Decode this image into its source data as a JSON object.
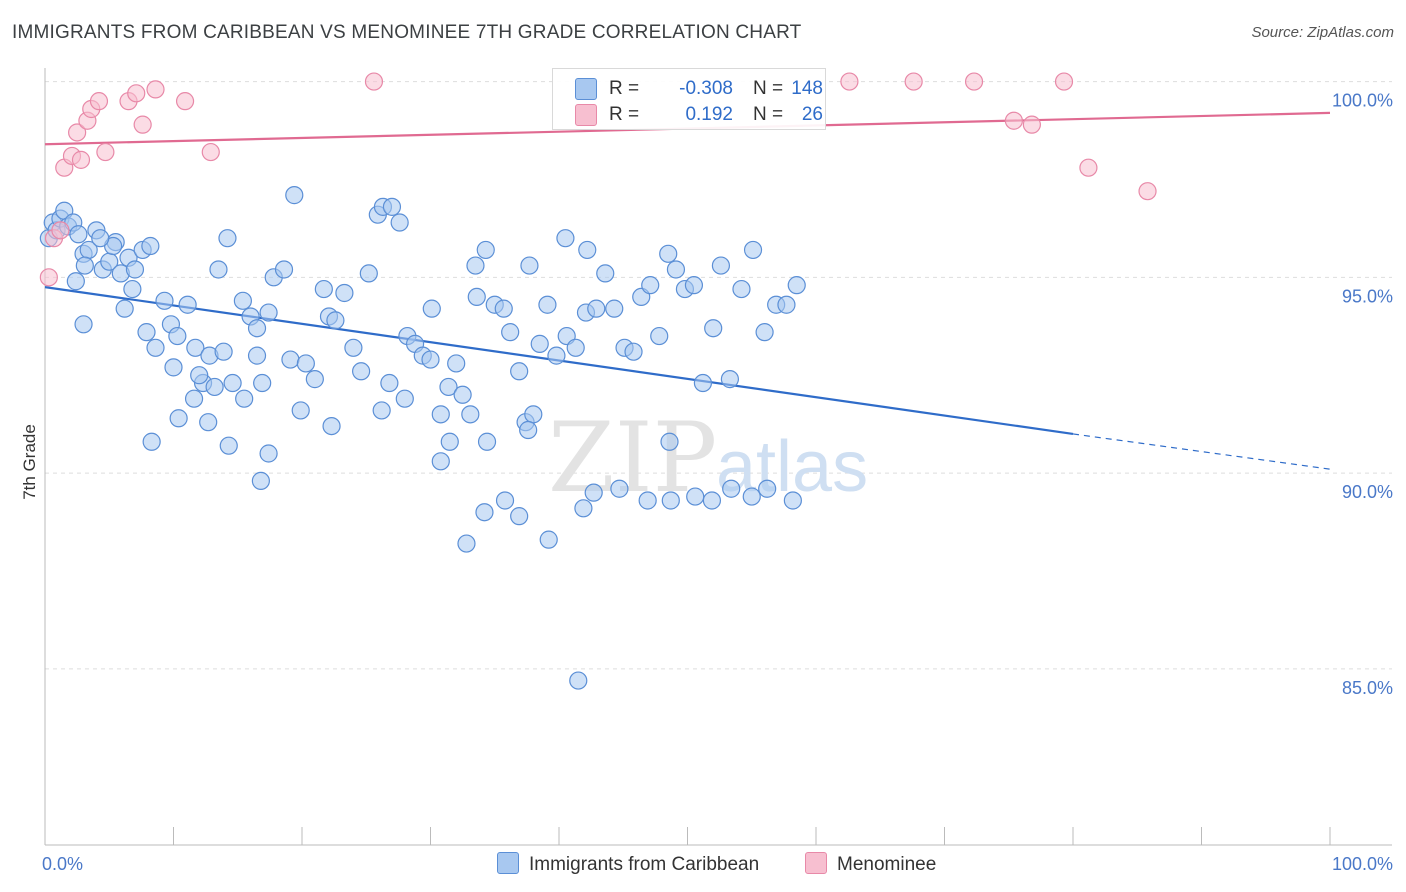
{
  "title": "IMMIGRANTS FROM CARIBBEAN VS MENOMINEE 7TH GRADE CORRELATION CHART",
  "source": "Source: ZipAtlas.com",
  "watermark": {
    "zip": "ZIP",
    "atlas": "atlas"
  },
  "colors": {
    "blue_fill": "#a8c8f0",
    "blue_stroke": "#5b8fd6",
    "blue_line": "#2f6cc9",
    "pink_fill": "#f7bfd0",
    "pink_stroke": "#e889a8",
    "pink_line": "#e06a91",
    "tick_text": "#4a78c8",
    "grid": "#dddddd"
  },
  "legend": {
    "rows": [
      {
        "r_label": "R =",
        "r_value": "-0.308",
        "n_label": "N =",
        "n_value": "148",
        "color": "#a8c8f0"
      },
      {
        "r_label": "R =",
        "r_value": "0.192",
        "n_label": "N =",
        "n_value": "26",
        "color": "#f7bfd0"
      }
    ]
  },
  "bottom_legend": [
    {
      "label": "Immigrants from Caribbean",
      "color": "#a8c8f0"
    },
    {
      "label": "Menominee",
      "color": "#f7bfd0"
    }
  ],
  "chart_data": {
    "type": "scatter",
    "title": "IMMIGRANTS FROM CARIBBEAN VS MENOMINEE 7TH GRADE CORRELATION CHART",
    "xlabel": "",
    "ylabel": "7th Grade",
    "xlim": [
      0,
      100
    ],
    "ylim": [
      80.5,
      100.5
    ],
    "x_ticks": [
      0,
      10,
      20,
      30,
      40,
      50,
      60,
      70,
      80,
      90,
      100
    ],
    "x_tick_labels": {
      "0": "0.0%",
      "100": "100.0%"
    },
    "y_ticks": [
      85,
      90,
      95,
      100
    ],
    "y_tick_labels": [
      "85.0%",
      "90.0%",
      "95.0%",
      "100.0%"
    ],
    "grid": true,
    "legend_position": "top-center",
    "series": [
      {
        "name": "Immigrants from Caribbean",
        "r": -0.308,
        "n": 148,
        "trend": {
          "x0": 0,
          "y0": 94.75,
          "x1": 80,
          "y1": 91.0,
          "dashed_to": 100,
          "y_end": 90.1
        },
        "points": [
          [
            0.3,
            96.0
          ],
          [
            0.6,
            96.4
          ],
          [
            0.9,
            96.2
          ],
          [
            1.2,
            96.5
          ],
          [
            1.5,
            96.7
          ],
          [
            1.8,
            96.3
          ],
          [
            2.2,
            96.4
          ],
          [
            2.6,
            96.1
          ],
          [
            3.0,
            95.6
          ],
          [
            3.4,
            95.7
          ],
          [
            4.0,
            96.2
          ],
          [
            4.5,
            95.2
          ],
          [
            5.0,
            95.4
          ],
          [
            5.5,
            95.9
          ],
          [
            5.9,
            95.1
          ],
          [
            6.5,
            95.5
          ],
          [
            7.0,
            95.2
          ],
          [
            7.6,
            95.7
          ],
          [
            8.2,
            95.8
          ],
          [
            3.1,
            95.3
          ],
          [
            5.3,
            95.8
          ],
          [
            4.3,
            96.0
          ],
          [
            2.4,
            94.9
          ],
          [
            6.2,
            94.2
          ],
          [
            7.9,
            93.6
          ],
          [
            8.6,
            93.2
          ],
          [
            9.3,
            94.4
          ],
          [
            9.8,
            93.8
          ],
          [
            10.3,
            93.5
          ],
          [
            11.1,
            94.3
          ],
          [
            11.7,
            93.2
          ],
          [
            12.3,
            92.3
          ],
          [
            12.8,
            93.0
          ],
          [
            13.2,
            92.2
          ],
          [
            13.9,
            93.1
          ],
          [
            14.6,
            92.3
          ],
          [
            3.0,
            93.8
          ],
          [
            6.8,
            94.7
          ],
          [
            10.0,
            92.7
          ],
          [
            12.0,
            92.5
          ],
          [
            13.5,
            95.2
          ],
          [
            14.2,
            96.0
          ],
          [
            15.4,
            94.4
          ],
          [
            16.0,
            94.0
          ],
          [
            16.5,
            93.7
          ],
          [
            17.4,
            94.1
          ],
          [
            17.8,
            95.0
          ],
          [
            18.6,
            95.2
          ],
          [
            19.4,
            97.1
          ],
          [
            16.9,
            92.3
          ],
          [
            8.3,
            90.8
          ],
          [
            10.4,
            91.4
          ],
          [
            11.6,
            91.9
          ],
          [
            12.7,
            91.3
          ],
          [
            14.3,
            90.7
          ],
          [
            15.5,
            91.9
          ],
          [
            16.8,
            89.8
          ],
          [
            17.4,
            90.5
          ],
          [
            19.1,
            92.9
          ],
          [
            19.9,
            91.6
          ],
          [
            20.3,
            92.8
          ],
          [
            21.0,
            92.4
          ],
          [
            21.7,
            94.7
          ],
          [
            22.1,
            94.0
          ],
          [
            22.6,
            93.9
          ],
          [
            23.3,
            94.6
          ],
          [
            24.0,
            93.2
          ],
          [
            24.6,
            92.6
          ],
          [
            25.2,
            95.1
          ],
          [
            25.9,
            96.6
          ],
          [
            26.3,
            96.8
          ],
          [
            27.0,
            96.8
          ],
          [
            27.6,
            96.4
          ],
          [
            28.2,
            93.5
          ],
          [
            28.8,
            93.3
          ],
          [
            29.4,
            93.0
          ],
          [
            30.1,
            94.2
          ],
          [
            30.8,
            91.5
          ],
          [
            31.4,
            92.2
          ],
          [
            32.0,
            92.8
          ],
          [
            32.5,
            92.0
          ],
          [
            33.1,
            91.5
          ],
          [
            33.6,
            94.5
          ],
          [
            34.3,
            95.7
          ],
          [
            35.0,
            94.3
          ],
          [
            35.7,
            94.2
          ],
          [
            36.2,
            93.6
          ],
          [
            36.9,
            92.6
          ],
          [
            37.4,
            91.3
          ],
          [
            38.0,
            91.5
          ],
          [
            16.5,
            93.0
          ],
          [
            22.3,
            91.2
          ],
          [
            26.2,
            91.6
          ],
          [
            28.0,
            91.9
          ],
          [
            26.8,
            92.3
          ],
          [
            30.8,
            90.3
          ],
          [
            31.5,
            90.8
          ],
          [
            30.0,
            92.9
          ],
          [
            34.4,
            90.8
          ],
          [
            37.6,
            91.1
          ],
          [
            38.5,
            93.3
          ],
          [
            39.1,
            94.3
          ],
          [
            39.8,
            93.0
          ],
          [
            40.6,
            93.5
          ],
          [
            41.3,
            93.2
          ],
          [
            42.1,
            94.1
          ],
          [
            42.9,
            94.2
          ],
          [
            43.6,
            95.1
          ],
          [
            44.3,
            94.2
          ],
          [
            45.1,
            93.2
          ],
          [
            45.8,
            93.1
          ],
          [
            46.4,
            94.5
          ],
          [
            47.1,
            94.8
          ],
          [
            47.8,
            93.5
          ],
          [
            48.5,
            95.6
          ],
          [
            49.1,
            95.2
          ],
          [
            49.8,
            94.7
          ],
          [
            50.5,
            94.8
          ],
          [
            51.2,
            92.3
          ],
          [
            52.0,
            93.7
          ],
          [
            52.6,
            95.3
          ],
          [
            53.3,
            92.4
          ],
          [
            54.2,
            94.7
          ],
          [
            55.1,
            95.7
          ],
          [
            56.0,
            93.6
          ],
          [
            56.9,
            94.3
          ],
          [
            57.7,
            94.3
          ],
          [
            58.5,
            94.8
          ],
          [
            33.5,
            95.3
          ],
          [
            40.5,
            96.0
          ],
          [
            42.2,
            95.7
          ],
          [
            37.7,
            95.3
          ],
          [
            48.6,
            90.8
          ],
          [
            41.9,
            89.1
          ],
          [
            32.8,
            88.2
          ],
          [
            35.8,
            89.3
          ],
          [
            34.2,
            89.0
          ],
          [
            36.9,
            88.9
          ],
          [
            39.2,
            88.3
          ],
          [
            42.7,
            89.5
          ],
          [
            44.7,
            89.6
          ],
          [
            46.9,
            89.3
          ],
          [
            48.7,
            89.3
          ],
          [
            50.6,
            89.4
          ],
          [
            51.9,
            89.3
          ],
          [
            53.4,
            89.6
          ],
          [
            55.0,
            89.4
          ],
          [
            56.2,
            89.6
          ],
          [
            58.2,
            89.3
          ],
          [
            41.5,
            84.7
          ]
        ]
      },
      {
        "name": "Menominee",
        "r": 0.192,
        "n": 26,
        "trend": {
          "x0": 0,
          "y0": 98.4,
          "x1": 100,
          "y1": 99.2
        },
        "points": [
          [
            0.3,
            95.0
          ],
          [
            0.7,
            96.0
          ],
          [
            1.2,
            96.2
          ],
          [
            1.5,
            97.8
          ],
          [
            2.1,
            98.1
          ],
          [
            2.5,
            98.7
          ],
          [
            2.8,
            98.0
          ],
          [
            3.3,
            99.0
          ],
          [
            3.6,
            99.3
          ],
          [
            4.2,
            99.5
          ],
          [
            4.7,
            98.2
          ],
          [
            6.5,
            99.5
          ],
          [
            7.1,
            99.7
          ],
          [
            7.6,
            98.9
          ],
          [
            8.6,
            99.8
          ],
          [
            10.9,
            99.5
          ],
          [
            12.9,
            98.2
          ],
          [
            25.6,
            100.0
          ],
          [
            62.6,
            100.0
          ],
          [
            67.6,
            100.0
          ],
          [
            72.3,
            100.0
          ],
          [
            75.4,
            99.0
          ],
          [
            76.8,
            98.9
          ],
          [
            79.3,
            100.0
          ],
          [
            81.2,
            97.8
          ],
          [
            85.8,
            97.2
          ]
        ]
      }
    ]
  }
}
